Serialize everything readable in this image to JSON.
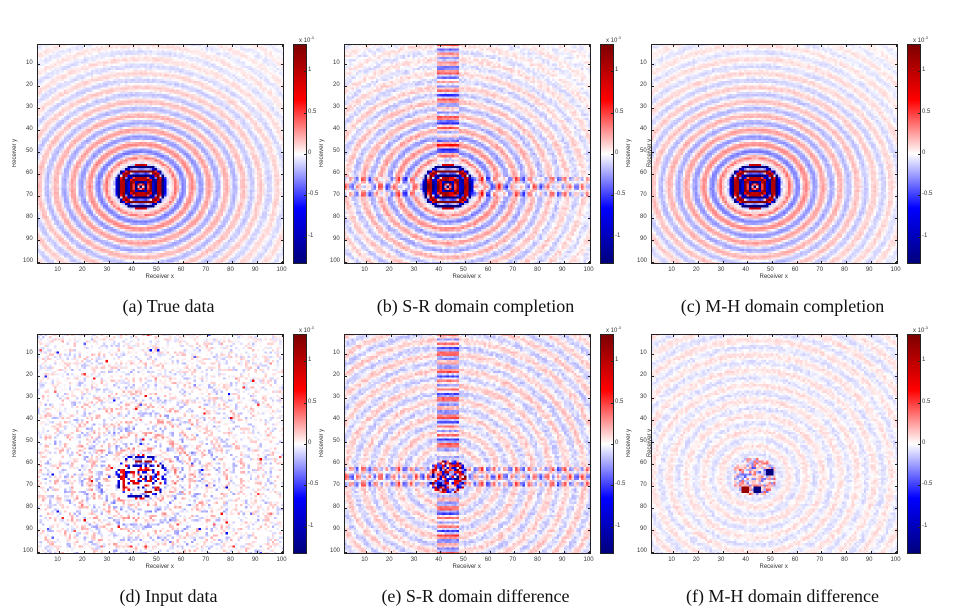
{
  "figure": {
    "colormap": {
      "name": "blue-white-red",
      "stops": [
        "#00007f",
        "#0000ff",
        "#ffffff",
        "#ff0000",
        "#7f0000"
      ]
    }
  },
  "chart_data": [
    {
      "type": "heatmap",
      "id": "a",
      "title": "",
      "caption": "(a) True data",
      "xlabel": "Receiver x",
      "ylabel": "Receiver y",
      "xlim": [
        1,
        101
      ],
      "ylim": [
        101,
        1
      ],
      "xticks": [
        10,
        20,
        30,
        40,
        50,
        60,
        70,
        80,
        90,
        100
      ],
      "yticks": [
        10,
        20,
        30,
        40,
        50,
        60,
        70,
        80,
        90,
        100
      ],
      "colorbar": {
        "ticks": [
          1,
          0.5,
          0,
          -0.5,
          -1
        ],
        "tick_labels": [
          "1",
          "0.5",
          "0",
          "-0.5",
          "-1"
        ],
        "range": [
          -1.33,
          1.33
        ],
        "exponent_label": "x 10",
        "exponent": "-3"
      },
      "pattern": {
        "kind": "true",
        "source_center": [
          43,
          66
        ],
        "description": "concentric wavefronts centered near (43,66), strong core radius ~10"
      }
    },
    {
      "type": "heatmap",
      "id": "b",
      "caption": "(b) S-R domain completion",
      "xlabel": "Receiver x",
      "ylabel": "Receiver y",
      "xlim": [
        1,
        101
      ],
      "ylim": [
        101,
        1
      ],
      "xticks": [
        10,
        20,
        30,
        40,
        50,
        60,
        70,
        80,
        90,
        100
      ],
      "yticks": [
        10,
        20,
        30,
        40,
        50,
        60,
        70,
        80,
        90,
        100
      ],
      "colorbar": {
        "ticks": [
          1,
          0.5,
          0,
          -0.5,
          -1
        ],
        "tick_labels": [
          "1",
          "0.5",
          "0",
          "-0.5",
          "-1"
        ],
        "range": [
          -1.33,
          1.33
        ],
        "exponent_label": "x 10",
        "exponent": "-3",
        "side_label": "Receiver y"
      },
      "pattern": {
        "kind": "sr_completion",
        "source_center": [
          43,
          66
        ],
        "description": "concentric wavefronts with cross-shaped artifacts along row ~66 and column ~43"
      }
    },
    {
      "type": "heatmap",
      "id": "c",
      "caption": "(c) M-H domain completion",
      "xlabel": "Receiver x",
      "ylabel": "Receiver y",
      "xlim": [
        1,
        101
      ],
      "ylim": [
        101,
        1
      ],
      "xticks": [
        10,
        20,
        30,
        40,
        50,
        60,
        70,
        80,
        90,
        100
      ],
      "yticks": [
        10,
        20,
        30,
        40,
        50,
        60,
        70,
        80,
        90,
        100
      ],
      "colorbar": {
        "ticks": [
          1,
          0.5,
          0,
          -0.5,
          -1
        ],
        "tick_labels": [
          "1",
          "0.5",
          "0",
          "-0.5",
          "-1"
        ],
        "range": [
          -1.33,
          1.33
        ],
        "exponent_label": "x 10",
        "exponent": "-3"
      },
      "pattern": {
        "kind": "mh_completion",
        "source_center": [
          43,
          66
        ],
        "description": "nearly identical to true data"
      }
    },
    {
      "type": "heatmap",
      "id": "d",
      "caption": "(d) Input data",
      "xlabel": "Receiver x",
      "ylabel": "Receiver y",
      "xlim": [
        1,
        101
      ],
      "ylim": [
        101,
        1
      ],
      "xticks": [
        10,
        20,
        30,
        40,
        50,
        60,
        70,
        80,
        90,
        100
      ],
      "yticks": [
        10,
        20,
        30,
        40,
        50,
        60,
        70,
        80,
        90,
        100
      ],
      "colorbar": {
        "ticks": [
          1,
          0.5,
          0,
          -0.5,
          -1
        ],
        "tick_labels": [
          "1",
          "0.5",
          "0",
          "-0.5",
          "-1"
        ],
        "range": [
          -1.33,
          1.33
        ],
        "exponent_label": "x 10",
        "exponent": "-3"
      },
      "pattern": {
        "kind": "input",
        "source_center": [
          43,
          66
        ],
        "description": "randomly subsampled true data (~50% missing traces)"
      }
    },
    {
      "type": "heatmap",
      "id": "e",
      "caption": "(e) S-R domain difference",
      "xlabel": "Receiver x",
      "ylabel": "Receiver y",
      "xlim": [
        1,
        101
      ],
      "ylim": [
        101,
        1
      ],
      "xticks": [
        10,
        20,
        30,
        40,
        50,
        60,
        70,
        80,
        90,
        100
      ],
      "yticks": [
        10,
        20,
        30,
        40,
        50,
        60,
        70,
        80,
        90,
        100
      ],
      "colorbar": {
        "ticks": [
          1,
          0.5,
          0,
          -0.5,
          -1
        ],
        "tick_labels": [
          "1",
          "0.5",
          "0",
          "-0.5",
          "-1"
        ],
        "range": [
          -1.33,
          1.33
        ],
        "exponent_label": "x 10",
        "exponent": "-3",
        "side_label": "Receiver y"
      },
      "pattern": {
        "kind": "sr_diff",
        "source_center": [
          43,
          66
        ],
        "description": "cross-shaped residual along row ~66 and column ~43, faint rings"
      }
    },
    {
      "type": "heatmap",
      "id": "f",
      "caption": "(f) M-H domain difference",
      "xlabel": "Receiver x",
      "ylabel": "Receiver y",
      "xlim": [
        1,
        101
      ],
      "ylim": [
        101,
        1
      ],
      "xticks": [
        10,
        20,
        30,
        40,
        50,
        60,
        70,
        80,
        90,
        100
      ],
      "yticks": [
        10,
        20,
        30,
        40,
        50,
        60,
        70,
        80,
        90,
        100
      ],
      "colorbar": {
        "ticks": [
          1,
          0.5,
          0,
          -0.5,
          -1
        ],
        "tick_labels": [
          "1",
          "0.5",
          "0",
          "-0.5",
          "-1"
        ],
        "range": [
          -1.33,
          1.33
        ],
        "exponent_label": "x 10",
        "exponent": "-3"
      },
      "pattern": {
        "kind": "mh_diff",
        "source_center": [
          43,
          66
        ],
        "description": "small residual near source, few hot pixels around (39,72),(44,72),(49,64)"
      }
    }
  ]
}
